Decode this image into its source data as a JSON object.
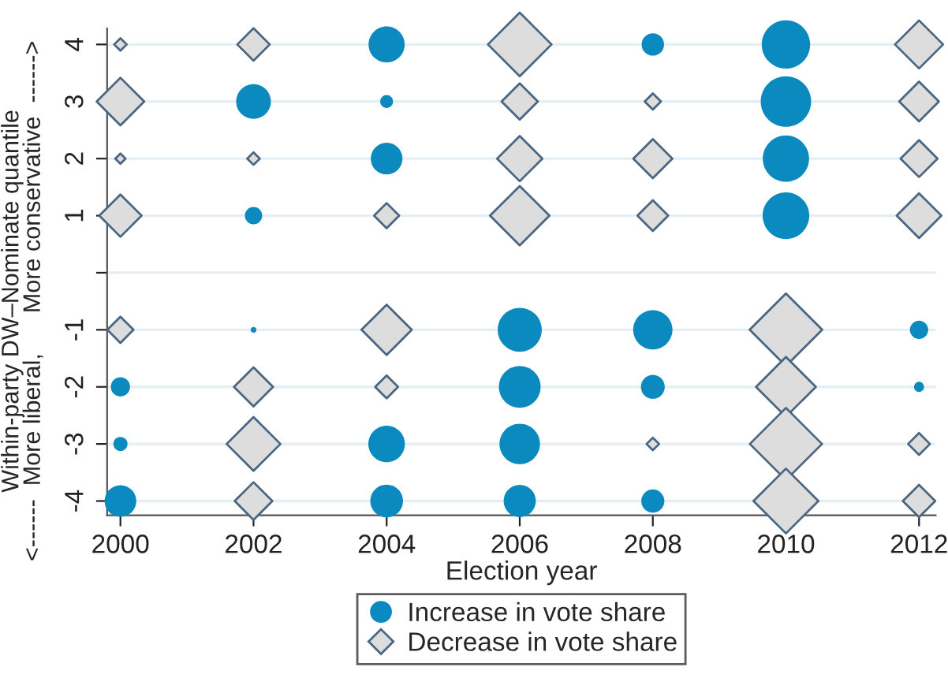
{
  "chart_data": {
    "type": "bubble",
    "xlabel": "Election year",
    "ylabel": "Within-party DW–Nominate quantile\n<------  More liberal,      More conservative  ------>",
    "xlim": [
      1999.8,
      2012.25
    ],
    "xticks": [
      2000,
      2002,
      2004,
      2006,
      2008,
      2010,
      2012
    ],
    "ylim": [
      -4.25,
      4.28
    ],
    "yticks": [
      -4,
      -3,
      -2,
      -1,
      {
        "value": 0,
        "label": null
      },
      1,
      2,
      3,
      4
    ],
    "grid": "y",
    "legend": "bottom",
    "series": [
      {
        "name": "Increase in vote share",
        "color": "#0a8abf",
        "marker": "circle",
        "x": [
          2000,
          2000,
          2000,
          2002,
          2002,
          2002,
          2004,
          2004,
          2004,
          2004,
          2004,
          2006,
          2006,
          2006,
          2006,
          2008,
          2008,
          2008,
          2008,
          2010,
          2010,
          2010,
          2010,
          2012,
          2012
        ],
        "values": [
          -2,
          -3,
          -4,
          3,
          1,
          -1,
          4,
          3,
          2,
          -3,
          -4,
          -1,
          -2,
          -3,
          -4,
          4,
          -1,
          -2,
          -4,
          4,
          3,
          2,
          1,
          -1,
          -2
        ],
        "sizes": [
          0.11,
          0.06,
          0.3,
          0.36,
          0.09,
          0.01,
          0.39,
          0.05,
          0.3,
          0.4,
          0.32,
          0.58,
          0.52,
          0.49,
          0.31,
          0.15,
          0.46,
          0.17,
          0.16,
          0.7,
          0.76,
          0.64,
          0.65,
          0.1,
          0.03
        ]
      },
      {
        "name": "Decrease in vote share",
        "color": "#dddddd",
        "marker": "diamond",
        "x": [
          2000,
          2000,
          2000,
          2000,
          2000,
          2002,
          2002,
          2002,
          2002,
          2002,
          2004,
          2004,
          2004,
          2006,
          2006,
          2006,
          2006,
          2008,
          2008,
          2008,
          2008,
          2010,
          2010,
          2010,
          2010,
          2012,
          2012,
          2012,
          2012,
          2012,
          2012
        ],
        "values": [
          4,
          3,
          2,
          1,
          -1,
          4,
          2,
          -2,
          -3,
          -4,
          1,
          -1,
          -2,
          4,
          3,
          2,
          1,
          3,
          2,
          1,
          -3,
          -1,
          -2,
          -3,
          -4,
          4,
          3,
          2,
          1,
          -3,
          -4
        ],
        "sizes": [
          0.03,
          0.43,
          0.02,
          0.34,
          0.13,
          0.2,
          0.03,
          0.29,
          0.55,
          0.27,
          0.12,
          0.48,
          0.1,
          0.77,
          0.25,
          0.39,
          0.67,
          0.05,
          0.29,
          0.18,
          0.03,
          1,
          0.68,
          0.99,
          0.8,
          0.44,
          0.3,
          0.26,
          0.38,
          0.09,
          0.2
        ]
      }
    ]
  }
}
